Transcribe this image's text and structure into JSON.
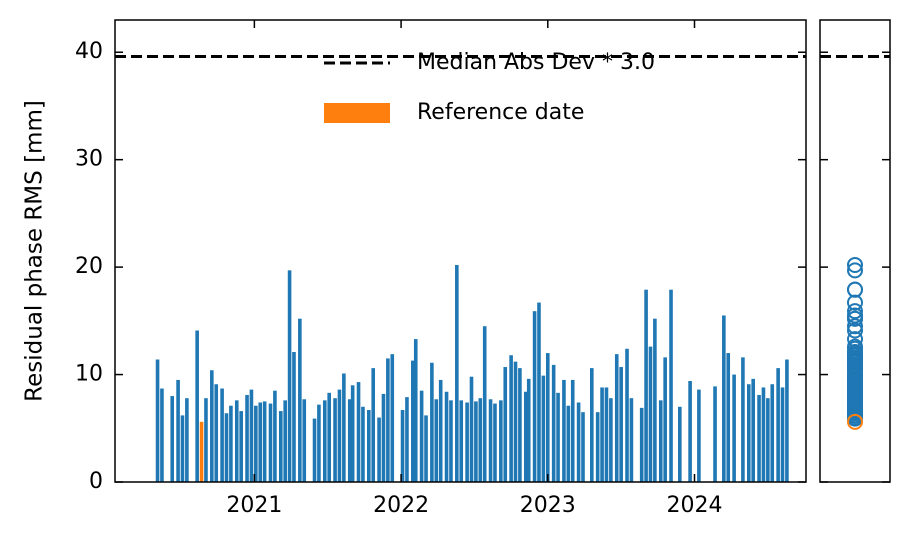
{
  "chart_data": {
    "type": "bar",
    "y_label": "Residual phase RMS [mm]",
    "color": "#1f77b4",
    "x": [
      2020.34,
      2020.37,
      2020.44,
      2020.48,
      2020.51,
      2020.54,
      2020.61,
      2020.67,
      2020.71,
      2020.74,
      2020.78,
      2020.81,
      2020.84,
      2020.88,
      2020.91,
      2020.95,
      2020.98,
      2021.01,
      2021.04,
      2021.07,
      2021.11,
      2021.14,
      2021.18,
      2021.21,
      2021.24,
      2021.27,
      2021.31,
      2021.34,
      2021.41,
      2021.44,
      2021.48,
      2021.51,
      2021.55,
      2021.58,
      2021.61,
      2021.65,
      2021.67,
      2021.71,
      2021.74,
      2021.78,
      2021.81,
      2021.85,
      2021.88,
      2021.91,
      2021.94,
      2022.01,
      2022.04,
      2022.08,
      2022.1,
      2022.14,
      2022.17,
      2022.21,
      2022.24,
      2022.27,
      2022.31,
      2022.34,
      2022.38,
      2022.41,
      2022.45,
      2022.48,
      2022.51,
      2022.54,
      2022.57,
      2022.61,
      2022.64,
      2022.68,
      2022.71,
      2022.75,
      2022.78,
      2022.81,
      2022.85,
      2022.87,
      2022.91,
      2022.94,
      2022.97,
      2023.0,
      2023.04,
      2023.07,
      2023.11,
      2023.14,
      2023.17,
      2023.21,
      2023.24,
      2023.3,
      2023.34,
      2023.37,
      2023.4,
      2023.43,
      2023.47,
      2023.5,
      2023.54,
      2023.57,
      2023.64,
      2023.67,
      2023.7,
      2023.73,
      2023.77,
      2023.8,
      2023.84,
      2023.9,
      2023.97,
      2024.03,
      2024.14,
      2024.2,
      2024.23,
      2024.27,
      2024.33,
      2024.37,
      2024.4,
      2024.44,
      2024.47,
      2024.5,
      2024.53,
      2024.57,
      2024.6,
      2024.63
    ],
    "values": [
      11.4,
      8.7,
      8.0,
      9.5,
      6.2,
      7.8,
      14.1,
      7.8,
      10.4,
      9.1,
      8.7,
      6.4,
      7.1,
      7.6,
      6.6,
      8.1,
      8.6,
      7.1,
      7.4,
      7.5,
      7.3,
      8.5,
      6.6,
      7.6,
      19.7,
      12.1,
      15.2,
      7.7,
      5.9,
      7.2,
      7.6,
      8.3,
      7.8,
      8.6,
      10.1,
      7.7,
      9.0,
      9.3,
      7.0,
      6.7,
      10.6,
      6.0,
      8.2,
      11.5,
      11.9,
      6.7,
      7.9,
      11.3,
      13.3,
      8.5,
      6.2,
      11.1,
      7.7,
      9.5,
      8.4,
      7.6,
      20.2,
      7.6,
      7.4,
      9.8,
      7.5,
      7.8,
      14.5,
      7.7,
      7.3,
      7.6,
      10.7,
      11.8,
      11.2,
      10.6,
      8.4,
      9.6,
      15.9,
      16.7,
      9.9,
      12.0,
      10.9,
      8.3,
      9.5,
      7.1,
      9.5,
      7.4,
      6.5,
      10.6,
      6.5,
      8.8,
      8.8,
      7.8,
      11.9,
      10.7,
      12.4,
      7.8,
      6.9,
      17.9,
      12.6,
      15.2,
      7.6,
      11.6,
      17.9,
      7.0,
      9.4,
      8.6,
      8.9,
      15.5,
      12.0,
      10.0,
      11.6,
      9.1,
      9.6,
      8.1,
      8.8,
      7.8,
      9.1,
      10.6,
      8.8,
      11.4
    ],
    "reference": {
      "name": "Reference date",
      "color": "#ff7f0e",
      "x": 2020.64,
      "value": 5.6
    },
    "threshold": {
      "name": "Median Abs Dev * 3.0",
      "value": 39.6,
      "color": "#000000"
    },
    "xlim": [
      2020.05,
      2024.76
    ],
    "xticks": [
      2021,
      2022,
      2023,
      2024
    ],
    "ylim": [
      0,
      43
    ],
    "yticks": [
      0,
      10,
      20,
      30,
      40
    ]
  }
}
